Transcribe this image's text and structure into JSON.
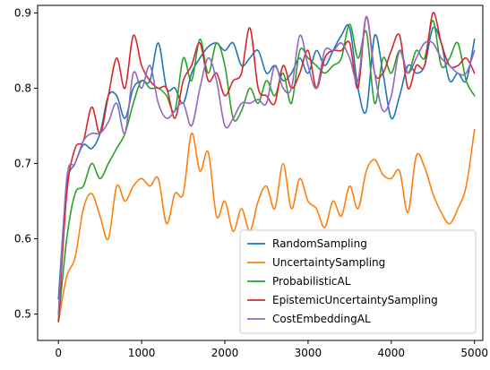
{
  "chart_data": {
    "type": "line",
    "title": "",
    "xlabel": "",
    "ylabel": "",
    "xlim": [
      -250,
      5100
    ],
    "ylim": [
      0.465,
      0.91
    ],
    "xticks": [
      0,
      1000,
      2000,
      3000,
      4000,
      5000
    ],
    "yticks": [
      0.5,
      0.6,
      0.7,
      0.8,
      0.9
    ],
    "xtick_labels": [
      "0",
      "1000",
      "2000",
      "3000",
      "4000",
      "5000"
    ],
    "ytick_labels": [
      "0.5",
      "0.6",
      "0.7",
      "0.8",
      "0.9"
    ],
    "grid": false,
    "legend_position": "lower-right",
    "x": [
      0,
      100,
      200,
      300,
      400,
      500,
      600,
      700,
      800,
      900,
      1000,
      1100,
      1200,
      1300,
      1400,
      1500,
      1600,
      1700,
      1800,
      1900,
      2000,
      2100,
      2200,
      2300,
      2400,
      2500,
      2600,
      2700,
      2800,
      2900,
      3000,
      3100,
      3200,
      3300,
      3400,
      3500,
      3600,
      3700,
      3800,
      3900,
      4000,
      4100,
      4200,
      4300,
      4400,
      4500,
      4600,
      4700,
      4800,
      4900,
      5000
    ],
    "series": [
      {
        "name": "RandomSampling",
        "color": "#1f77b4",
        "values": [
          0.52,
          0.67,
          0.7,
          0.725,
          0.72,
          0.74,
          0.79,
          0.79,
          0.76,
          0.8,
          0.81,
          0.81,
          0.86,
          0.8,
          0.8,
          0.78,
          0.82,
          0.84,
          0.855,
          0.86,
          0.85,
          0.86,
          0.83,
          0.84,
          0.85,
          0.82,
          0.83,
          0.81,
          0.82,
          0.84,
          0.82,
          0.85,
          0.83,
          0.85,
          0.87,
          0.88,
          0.8,
          0.77,
          0.87,
          0.82,
          0.76,
          0.79,
          0.83,
          0.82,
          0.83,
          0.88,
          0.86,
          0.81,
          0.82,
          0.81,
          0.865
        ]
      },
      {
        "name": "UncertaintySampling",
        "color": "#ff7f0e",
        "values": [
          0.49,
          0.55,
          0.575,
          0.64,
          0.66,
          0.63,
          0.6,
          0.67,
          0.65,
          0.67,
          0.68,
          0.67,
          0.68,
          0.62,
          0.66,
          0.66,
          0.74,
          0.69,
          0.715,
          0.63,
          0.65,
          0.61,
          0.64,
          0.61,
          0.65,
          0.67,
          0.64,
          0.7,
          0.64,
          0.68,
          0.65,
          0.64,
          0.615,
          0.65,
          0.63,
          0.67,
          0.64,
          0.69,
          0.705,
          0.685,
          0.68,
          0.69,
          0.635,
          0.71,
          0.695,
          0.66,
          0.635,
          0.62,
          0.64,
          0.67,
          0.745
        ]
      },
      {
        "name": "ProbabilisticAL",
        "color": "#2ca02c",
        "values": [
          0.49,
          0.6,
          0.66,
          0.67,
          0.7,
          0.68,
          0.7,
          0.72,
          0.74,
          0.78,
          0.81,
          0.8,
          0.8,
          0.79,
          0.77,
          0.84,
          0.81,
          0.865,
          0.82,
          0.86,
          0.83,
          0.76,
          0.77,
          0.8,
          0.78,
          0.81,
          0.79,
          0.82,
          0.78,
          0.85,
          0.84,
          0.83,
          0.82,
          0.83,
          0.84,
          0.885,
          0.84,
          0.875,
          0.78,
          0.84,
          0.82,
          0.85,
          0.82,
          0.85,
          0.84,
          0.89,
          0.83,
          0.84,
          0.86,
          0.81,
          0.79
        ]
      },
      {
        "name": "EpistemicUncertaintySampling",
        "color": "#d62728",
        "values": [
          0.49,
          0.66,
          0.72,
          0.73,
          0.775,
          0.74,
          0.79,
          0.84,
          0.8,
          0.87,
          0.83,
          0.81,
          0.8,
          0.8,
          0.76,
          0.81,
          0.83,
          0.86,
          0.81,
          0.82,
          0.79,
          0.81,
          0.82,
          0.88,
          0.8,
          0.79,
          0.78,
          0.83,
          0.8,
          0.82,
          0.85,
          0.8,
          0.84,
          0.85,
          0.85,
          0.86,
          0.8,
          0.895,
          0.82,
          0.82,
          0.85,
          0.87,
          0.8,
          0.83,
          0.83,
          0.9,
          0.86,
          0.83,
          0.83,
          0.84,
          0.82
        ]
      },
      {
        "name": "CostEmbeddingAL",
        "color": "#9467bd",
        "values": [
          0.5,
          0.68,
          0.7,
          0.73,
          0.74,
          0.74,
          0.755,
          0.78,
          0.74,
          0.82,
          0.8,
          0.83,
          0.78,
          0.76,
          0.77,
          0.78,
          0.75,
          0.8,
          0.84,
          0.81,
          0.75,
          0.76,
          0.78,
          0.78,
          0.785,
          0.78,
          0.83,
          0.8,
          0.8,
          0.87,
          0.83,
          0.8,
          0.85,
          0.85,
          0.86,
          0.84,
          0.81,
          0.895,
          0.82,
          0.77,
          0.79,
          0.85,
          0.82,
          0.84,
          0.86,
          0.86,
          0.84,
          0.83,
          0.82,
          0.82,
          0.85
        ]
      }
    ]
  }
}
